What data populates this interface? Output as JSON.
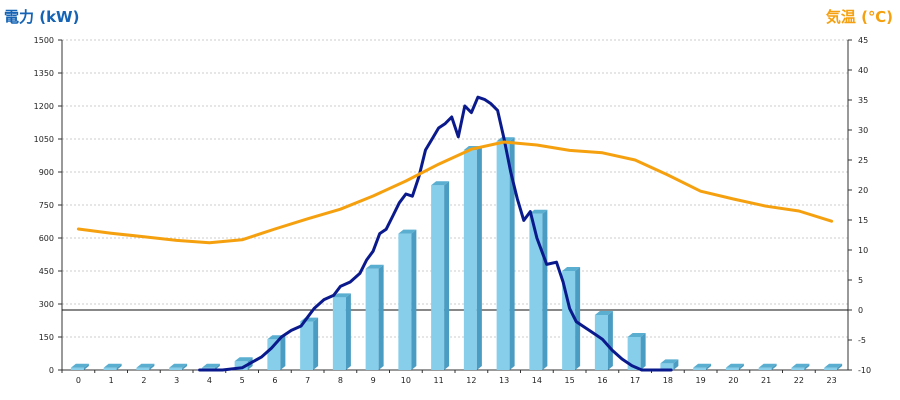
{
  "chart_data": {
    "type": "bar",
    "left_axis_title": "電力 (kW)",
    "right_axis_title": "気温 (℃)",
    "categories": [
      "0",
      "1",
      "2",
      "3",
      "4",
      "5",
      "6",
      "7",
      "8",
      "9",
      "10",
      "11",
      "12",
      "13",
      "14",
      "15",
      "16",
      "17",
      "18",
      "19",
      "20",
      "21",
      "22",
      "23"
    ],
    "y_left": {
      "min": 0,
      "max": 1500,
      "ticks": [
        0,
        150,
        300,
        450,
        600,
        750,
        900,
        1050,
        1200,
        1350,
        1500
      ]
    },
    "y_right": {
      "min": -10,
      "max": 45,
      "ticks": [
        -10,
        -5,
        0,
        5,
        10,
        15,
        20,
        25,
        30,
        35,
        40,
        45
      ]
    },
    "grid": true,
    "series": [
      {
        "kind": "bar",
        "axis": "left",
        "color": "#87ceeb",
        "values": [
          10,
          10,
          10,
          10,
          10,
          40,
          140,
          220,
          330,
          460,
          620,
          840,
          1000,
          1040,
          710,
          450,
          250,
          150,
          30,
          10,
          10,
          10,
          10,
          10
        ]
      },
      {
        "kind": "line",
        "axis": "left",
        "color": "#0a1a8c",
        "x": [
          3.7,
          4.0,
          4.4,
          4.7,
          5.0,
          5.3,
          5.6,
          5.9,
          6.2,
          6.5,
          6.8,
          7.0,
          7.2,
          7.5,
          7.8,
          8.0,
          8.3,
          8.6,
          8.8,
          9.0,
          9.2,
          9.4,
          9.6,
          9.8,
          10.0,
          10.2,
          10.4,
          10.6,
          10.8,
          11.0,
          11.2,
          11.4,
          11.6,
          11.8,
          12.0,
          12.2,
          12.4,
          12.6,
          12.8,
          13.0,
          13.2,
          13.4,
          13.6,
          13.8,
          14.0,
          14.3,
          14.6,
          14.8,
          15.0,
          15.2,
          15.4,
          15.6,
          15.8,
          16.0,
          16.3,
          16.6,
          16.9,
          17.2,
          17.5,
          17.8,
          18.1
        ],
        "values": [
          0,
          0,
          0,
          5,
          10,
          35,
          60,
          100,
          150,
          180,
          200,
          240,
          280,
          320,
          340,
          380,
          400,
          440,
          500,
          540,
          620,
          640,
          700,
          760,
          800,
          790,
          880,
          1000,
          1050,
          1100,
          1120,
          1150,
          1060,
          1200,
          1170,
          1240,
          1230,
          1210,
          1180,
          1050,
          900,
          780,
          680,
          720,
          600,
          480,
          490,
          400,
          280,
          220,
          200,
          180,
          160,
          140,
          90,
          50,
          20,
          0,
          0,
          0,
          0
        ]
      },
      {
        "kind": "line",
        "axis": "right",
        "color": "#f5a00f",
        "x": [
          0,
          1,
          2,
          3,
          4,
          5,
          6,
          7,
          8,
          9,
          10,
          11,
          12,
          13,
          14,
          15,
          16,
          17,
          18,
          19,
          20,
          21,
          22,
          23
        ],
        "values": [
          13.5,
          12.8,
          12.2,
          11.6,
          11.2,
          11.7,
          13.5,
          15.2,
          16.8,
          19,
          21.5,
          24.3,
          26.8,
          28,
          27.5,
          26.6,
          26.2,
          25,
          22.5,
          19.8,
          18.5,
          17.3,
          16.5,
          14.8
        ]
      }
    ],
    "reference_line": {
      "axis": "right",
      "value": 0,
      "color": "#111111"
    }
  }
}
